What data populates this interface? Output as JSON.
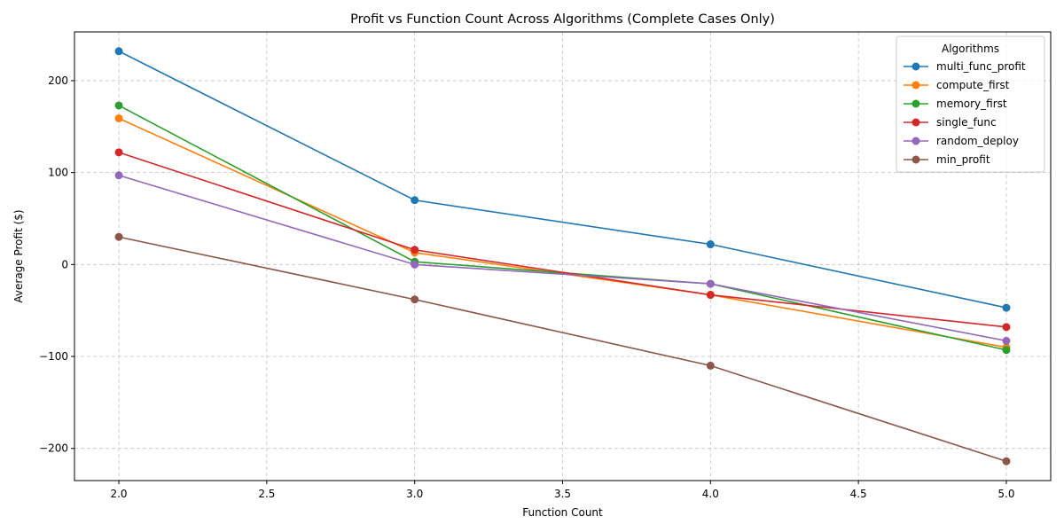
{
  "chart_data": {
    "type": "line",
    "title": "Profit vs Function Count Across Algorithms (Complete Cases Only)",
    "xlabel": "Function Count",
    "ylabel": "Average Profit ($)",
    "xlim": [
      1.85,
      5.15
    ],
    "ylim": [
      -235,
      253
    ],
    "xticks": [
      2.0,
      2.5,
      3.0,
      3.5,
      4.0,
      4.5,
      5.0
    ],
    "xtick_labels": [
      "2.0",
      "2.5",
      "3.0",
      "3.5",
      "4.0",
      "4.5",
      "5.0"
    ],
    "yticks": [
      -200,
      -100,
      0,
      100,
      200
    ],
    "ytick_labels": [
      "−200",
      "−100",
      "0",
      "100",
      "200"
    ],
    "grid": true,
    "legend": {
      "title": "Algorithms",
      "placement": "top-right"
    },
    "x": [
      2,
      3,
      4,
      5
    ],
    "series": [
      {
        "name": "multi_func_profit",
        "color": "#1f77b4",
        "values": [
          232,
          70,
          22,
          -47
        ]
      },
      {
        "name": "compute_first",
        "color": "#ff7f0e",
        "values": [
          159,
          13,
          -33,
          -90
        ]
      },
      {
        "name": "memory_first",
        "color": "#2ca02c",
        "values": [
          173,
          3,
          -21,
          -93
        ]
      },
      {
        "name": "single_func",
        "color": "#d62728",
        "values": [
          122,
          16,
          -33,
          -68
        ]
      },
      {
        "name": "random_deploy",
        "color": "#9467bd",
        "values": [
          97,
          0,
          -21,
          -83
        ]
      },
      {
        "name": "min_profit",
        "color": "#8c564b",
        "values": [
          30,
          -38,
          -110,
          -214
        ]
      }
    ]
  }
}
